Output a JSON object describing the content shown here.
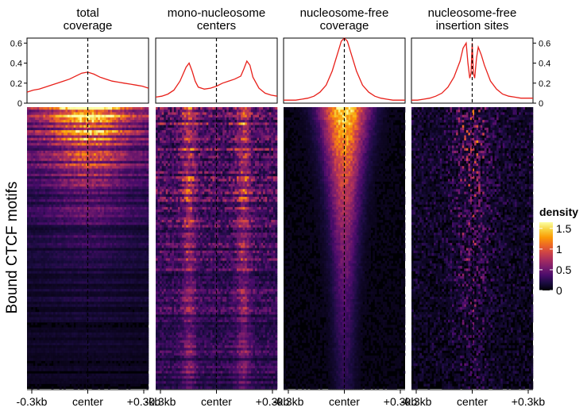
{
  "chart_data": {
    "type": "heatmap",
    "ylabel": "Bound CTCF motifs",
    "x_tick_labels": [
      "-0.3kb",
      "center",
      "+0.3kb"
    ],
    "profile_ylim": [
      0,
      0.65
    ],
    "profile_y_ticks": [
      0,
      0.2,
      0.4,
      0.6
    ],
    "profile_y_tick_labels": [
      "0",
      "0.2",
      "0.4",
      "0.6"
    ],
    "profile_color": "#e8201a",
    "center_line_style": "dashed",
    "legend": {
      "title": "density",
      "ticks": [
        0,
        0.5,
        1,
        1.5
      ],
      "tick_labels": [
        "0",
        "0.5",
        "1",
        "1.5"
      ],
      "range": [
        0,
        1.65
      ],
      "colormap": [
        "#000004",
        "#1b0c41",
        "#4a0c6b",
        "#781c6d",
        "#a52c60",
        "#cf4446",
        "#ed6925",
        "#fb9b06",
        "#f7d13d",
        "#fcffa4"
      ]
    },
    "panels": [
      {
        "title_lines": [
          "total",
          "coverage"
        ],
        "profile": {
          "x": [
            -1,
            -0.9,
            -0.8,
            -0.7,
            -0.6,
            -0.5,
            -0.4,
            -0.3,
            -0.2,
            -0.1,
            0,
            0.1,
            0.2,
            0.3,
            0.4,
            0.5,
            0.6,
            0.7,
            0.8,
            0.9,
            1
          ],
          "y": [
            0.11,
            0.13,
            0.14,
            0.16,
            0.18,
            0.2,
            0.22,
            0.24,
            0.27,
            0.3,
            0.31,
            0.29,
            0.26,
            0.24,
            0.22,
            0.21,
            0.2,
            0.19,
            0.18,
            0.17,
            0.15
          ]
        }
      },
      {
        "title_lines": [
          "mono-nucleosome",
          "centers"
        ],
        "profile": {
          "x": [
            -1,
            -0.9,
            -0.8,
            -0.7,
            -0.6,
            -0.5,
            -0.45,
            -0.4,
            -0.35,
            -0.3,
            -0.2,
            -0.1,
            0,
            0.1,
            0.2,
            0.3,
            0.4,
            0.45,
            0.5,
            0.55,
            0.6,
            0.7,
            0.8,
            0.9,
            1
          ],
          "y": [
            0.06,
            0.07,
            0.09,
            0.13,
            0.22,
            0.36,
            0.4,
            0.32,
            0.22,
            0.16,
            0.14,
            0.15,
            0.17,
            0.2,
            0.22,
            0.24,
            0.27,
            0.34,
            0.42,
            0.38,
            0.26,
            0.15,
            0.1,
            0.08,
            0.07
          ]
        }
      },
      {
        "title_lines": [
          "nucleosome-free",
          "coverage"
        ],
        "profile": {
          "x": [
            -1,
            -0.9,
            -0.8,
            -0.7,
            -0.6,
            -0.5,
            -0.4,
            -0.3,
            -0.2,
            -0.1,
            -0.05,
            0,
            0.05,
            0.1,
            0.2,
            0.3,
            0.4,
            0.5,
            0.6,
            0.7,
            0.8,
            0.9,
            1
          ],
          "y": [
            0.03,
            0.03,
            0.03,
            0.04,
            0.05,
            0.07,
            0.11,
            0.18,
            0.32,
            0.52,
            0.62,
            0.65,
            0.62,
            0.52,
            0.32,
            0.18,
            0.11,
            0.07,
            0.05,
            0.04,
            0.03,
            0.03,
            0.03
          ]
        }
      },
      {
        "title_lines": [
          "nucleosome-free",
          "insertion sites"
        ],
        "profile": {
          "x": [
            -1,
            -0.9,
            -0.8,
            -0.7,
            -0.6,
            -0.5,
            -0.4,
            -0.3,
            -0.2,
            -0.15,
            -0.1,
            -0.07,
            -0.04,
            -0.02,
            0,
            0.02,
            0.04,
            0.07,
            0.1,
            0.15,
            0.2,
            0.3,
            0.4,
            0.5,
            0.6,
            0.7,
            0.8,
            0.9,
            1
          ],
          "y": [
            0.03,
            0.03,
            0.04,
            0.05,
            0.07,
            0.1,
            0.16,
            0.26,
            0.42,
            0.55,
            0.6,
            0.4,
            0.25,
            0.3,
            0.6,
            0.3,
            0.25,
            0.45,
            0.56,
            0.48,
            0.38,
            0.22,
            0.14,
            0.09,
            0.07,
            0.06,
            0.05,
            0.05,
            0.05
          ]
        }
      }
    ],
    "heatmap_rows": 110,
    "heatmap_cols": 60
  }
}
